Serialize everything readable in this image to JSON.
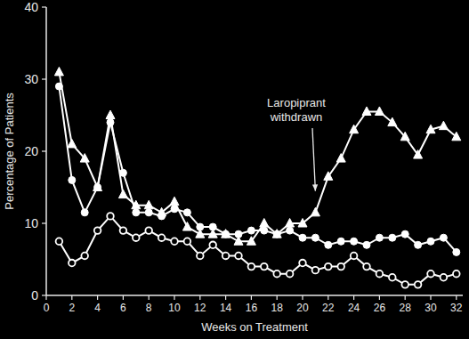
{
  "chart_data": {
    "type": "line",
    "x_label": "Weeks on Treatment",
    "y_label": "Percentage of Patients",
    "x": [
      1,
      2,
      3,
      4,
      5,
      6,
      7,
      8,
      9,
      10,
      11,
      12,
      13,
      14,
      15,
      16,
      17,
      18,
      19,
      20,
      21,
      22,
      23,
      24,
      25,
      26,
      27,
      28,
      29,
      30,
      31,
      32
    ],
    "series": [
      {
        "color": "#ffffff",
        "marker": "triangle",
        "line_style": "solid",
        "values": [
          31,
          21,
          19,
          15,
          25,
          14,
          12.5,
          12.5,
          11.5,
          13,
          9.5,
          8.5,
          8.5,
          8.5,
          7.5,
          7.5,
          10,
          8.5,
          10,
          10,
          11.5,
          16.5,
          19,
          23,
          25.5,
          25.5,
          24,
          22,
          19.5,
          23,
          23.5,
          22
        ]
      },
      {
        "color": "#ffffff",
        "marker": "circle",
        "line_style": "solid",
        "values": [
          29,
          16,
          11.5,
          15,
          24,
          17,
          11.5,
          11.5,
          11,
          12,
          11.5,
          9.5,
          9.5,
          8.5,
          8.5,
          9,
          9,
          8.5,
          9,
          8,
          8,
          7,
          7.5,
          7.5,
          7,
          8,
          8,
          8.5,
          7,
          7.5,
          8,
          6
        ]
      },
      {
        "color": "#ffffff",
        "marker": "circle-open",
        "line_style": "solid",
        "values": [
          7.5,
          4.5,
          5.5,
          9,
          11,
          9,
          8,
          9,
          8,
          7.5,
          7.5,
          5.5,
          7,
          5.5,
          5.5,
          4,
          4,
          3,
          3,
          4.5,
          3.5,
          4,
          4,
          5.5,
          4,
          3,
          2.5,
          1.5,
          1.5,
          3,
          2.5,
          3
        ]
      }
    ],
    "annotations": [
      {
        "text": [
          "Laropiprant",
          "withdrawn"
        ],
        "x": 21,
        "y": 13.5
      }
    ],
    "xlim": [
      0,
      32.5
    ],
    "xticks": [
      0,
      2,
      4,
      6,
      8,
      10,
      12,
      14,
      16,
      18,
      20,
      22,
      24,
      26,
      28,
      30,
      32
    ],
    "ylim": [
      0,
      40
    ],
    "yticks": [
      0,
      10,
      20,
      30,
      40
    ],
    "grid": false
  }
}
